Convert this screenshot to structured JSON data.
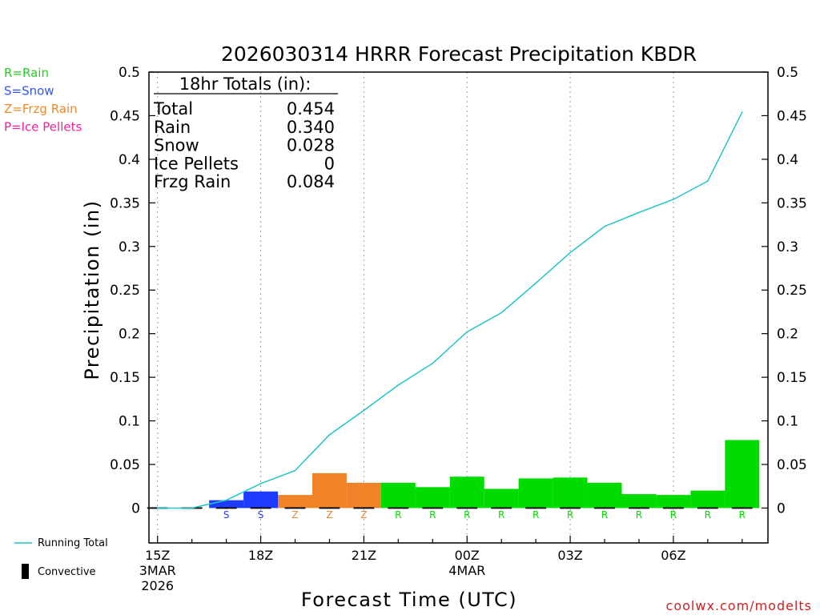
{
  "chart_data": {
    "type": "bar",
    "title": "2026030314 HRRR Forecast Precipitation KBDR",
    "xlabel": "Forecast Time (UTC)",
    "ylabel": "Precipitation (in)",
    "ylim": [
      -0.04,
      0.5
    ],
    "xlim": [
      14.75,
      32.75
    ],
    "y_ticks": [
      0,
      0.05,
      0.1,
      0.15,
      0.2,
      0.25,
      0.3,
      0.35,
      0.4,
      0.45,
      0.5
    ],
    "y_tick_labels": [
      "0",
      "0.05",
      "0.1",
      "0.15",
      "0.2",
      "0.25",
      "0.3",
      "0.35",
      "0.4",
      "0.45",
      "0.5"
    ],
    "x_ticks": [
      {
        "hour": 15,
        "lines": [
          "15Z",
          "3MAR",
          "2026"
        ]
      },
      {
        "hour": 18,
        "lines": [
          "18Z"
        ]
      },
      {
        "hour": 21,
        "lines": [
          "21Z"
        ]
      },
      {
        "hour": 24,
        "lines": [
          "00Z",
          "4MAR"
        ]
      },
      {
        "hour": 27,
        "lines": [
          "03Z"
        ]
      },
      {
        "hour": 30,
        "lines": [
          "06Z"
        ]
      }
    ],
    "bar_hours": [
      17,
      18,
      19,
      20,
      21,
      22,
      23,
      24,
      25,
      26,
      27,
      28,
      29,
      30,
      31,
      32
    ],
    "bar_values": [
      0.009,
      0.019,
      0.015,
      0.04,
      0.029,
      0.029,
      0.024,
      0.036,
      0.022,
      0.034,
      0.035,
      0.029,
      0.016,
      0.015,
      0.02,
      0.078
    ],
    "bar_types": [
      "S",
      "S",
      "Z",
      "Z",
      "Z",
      "R",
      "R",
      "R",
      "R",
      "R",
      "R",
      "R",
      "R",
      "R",
      "R",
      "R"
    ],
    "letter_hours": [
      17,
      18,
      19,
      20,
      21,
      22,
      23,
      24,
      25,
      26,
      27,
      28,
      29,
      30,
      31,
      32
    ],
    "letters": [
      "S",
      "S",
      "Z",
      "Z",
      "Z",
      "R",
      "R",
      "R",
      "R",
      "R",
      "R",
      "R",
      "R",
      "R",
      "R",
      "R"
    ],
    "running_total": {
      "name": "Running Total",
      "x": [
        15,
        16,
        17,
        18,
        19,
        20,
        21,
        22,
        23,
        24,
        25,
        26,
        27,
        28,
        29,
        30,
        31,
        32
      ],
      "values": [
        0,
        0,
        0.009,
        0.028,
        0.043,
        0.084,
        0.112,
        0.141,
        0.166,
        0.202,
        0.224,
        0.258,
        0.293,
        0.323,
        0.339,
        0.354,
        0.375,
        0.454
      ]
    },
    "totals_box": {
      "header": "18hr Totals (in):",
      "rows": [
        {
          "label": "Total",
          "value": "0.454"
        },
        {
          "label": "Rain",
          "value": "0.340"
        },
        {
          "label": "Snow",
          "value": "0.028"
        },
        {
          "label": "Ice Pellets",
          "value": "0"
        },
        {
          "label": "Frzg Rain",
          "value": "0.084"
        }
      ]
    },
    "legend_types": [
      {
        "code": "R",
        "text": "R=Rain",
        "color": "#22cc22"
      },
      {
        "code": "S",
        "text": "S=Snow",
        "color": "#3355ee"
      },
      {
        "code": "Z",
        "text": "Z=Frzg Rain",
        "color": "#ee8822"
      },
      {
        "code": "P",
        "text": "P=Ice Pellets",
        "color": "#ee2299"
      }
    ],
    "legend_lines": [
      {
        "text": "Running Total",
        "color": "#22c4c4"
      },
      {
        "text": "Convective",
        "color": "#000000"
      }
    ],
    "colors": {
      "R": "#00dc00",
      "S": "#1e3cff",
      "Z": "#f08228",
      "line": "#22c4c4",
      "axis": "#000000",
      "grid": "#a0a0a0"
    }
  },
  "watermark": "coolwx.com/modelts"
}
